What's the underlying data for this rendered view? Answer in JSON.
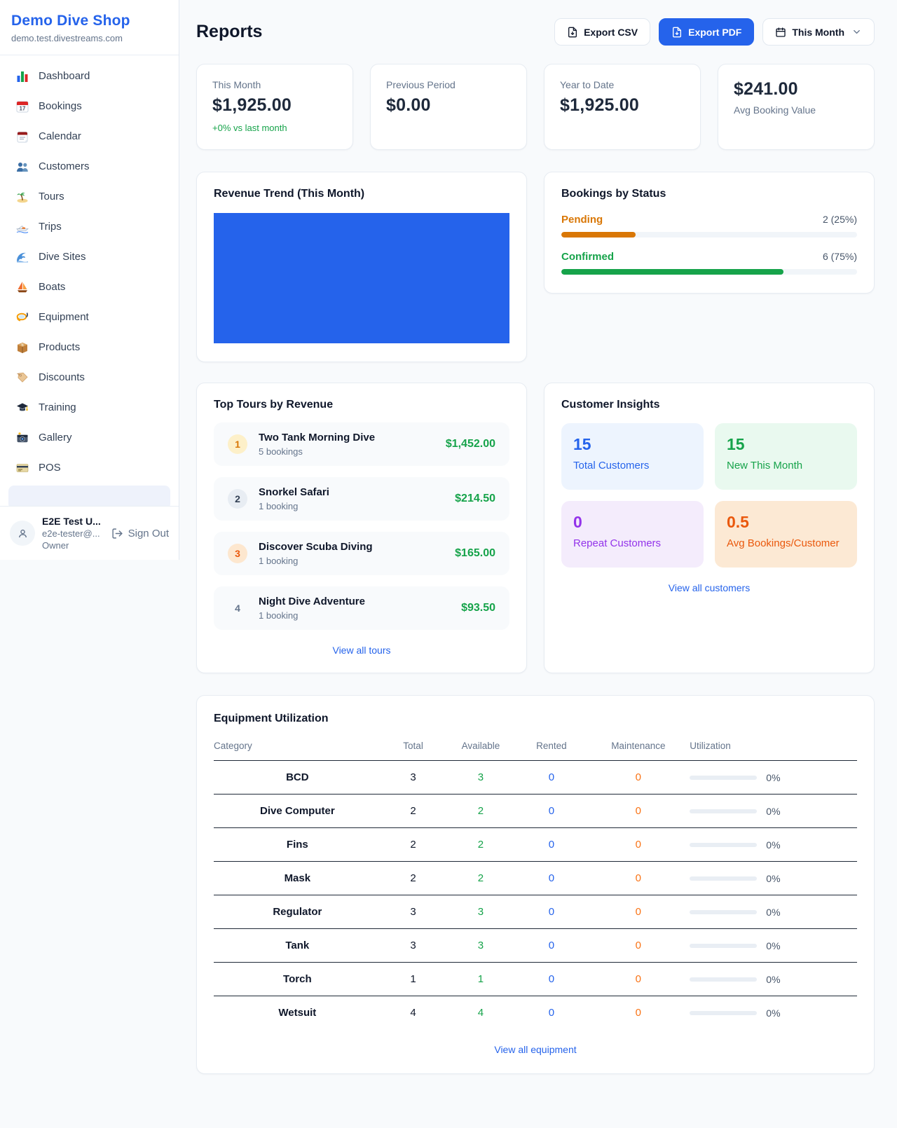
{
  "colors": {
    "accent": "#2563eb",
    "success": "#16a34a",
    "pending_orange": "#d97706",
    "maintenance_orange": "#f97316",
    "purple": "#9333ea",
    "deep_orange": "#ea580c",
    "background": "#f8fafc"
  },
  "sidebar": {
    "shop_name": "Demo Dive Shop",
    "domain": "demo.test.divestreams.com",
    "items": [
      {
        "label": "Dashboard"
      },
      {
        "label": "Bookings"
      },
      {
        "label": "Calendar"
      },
      {
        "label": "Customers"
      },
      {
        "label": "Tours"
      },
      {
        "label": "Trips"
      },
      {
        "label": "Dive Sites"
      },
      {
        "label": "Boats"
      },
      {
        "label": "Equipment"
      },
      {
        "label": "Products"
      },
      {
        "label": "Discounts"
      },
      {
        "label": "Training"
      },
      {
        "label": "Gallery"
      },
      {
        "label": "POS"
      }
    ],
    "user": {
      "name": "E2E Test U...",
      "email": "e2e-tester@...",
      "role": "Owner",
      "sign_out": "Sign Out"
    }
  },
  "header": {
    "title": "Reports",
    "export_csv": "Export CSV",
    "export_pdf": "Export PDF",
    "period": "This Month"
  },
  "stats": [
    {
      "label": "This Month",
      "value": "$1,925.00",
      "delta": "+0% vs last month"
    },
    {
      "label": "Previous Period",
      "value": "$0.00"
    },
    {
      "label": "Year to Date",
      "value": "$1,925.00"
    },
    {
      "label": "Avg Booking Value",
      "value": "$241.00"
    }
  ],
  "revenue_trend": {
    "title": "Revenue Trend (This Month)"
  },
  "chart_data": {
    "type": "bar",
    "title": "Revenue Trend (This Month)",
    "series": [
      {
        "name": "Revenue",
        "values": [
          1925
        ]
      }
    ],
    "note": "single solid blue bar filling entire plot area, no axes or labels shown",
    "bar_color": "#2563eb"
  },
  "bookings_by_status": {
    "title": "Bookings by Status",
    "rows": [
      {
        "label": "Pending",
        "value": "2 (25%)",
        "pct": 25
      },
      {
        "label": "Confirmed",
        "value": "6 (75%)",
        "pct": 75
      }
    ]
  },
  "top_tours": {
    "title": "Top Tours by Revenue",
    "items": [
      {
        "rank": "1",
        "name": "Two Tank Morning Dive",
        "sub": "5 bookings",
        "price": "$1,452.00"
      },
      {
        "rank": "2",
        "name": "Snorkel Safari",
        "sub": "1 booking",
        "price": "$214.50"
      },
      {
        "rank": "3",
        "name": "Discover Scuba Diving",
        "sub": "1 booking",
        "price": "$165.00"
      },
      {
        "rank": "4",
        "name": "Night Dive Adventure",
        "sub": "1 booking",
        "price": "$93.50"
      }
    ],
    "view_all": "View all tours"
  },
  "customer_insights": {
    "title": "Customer Insights",
    "tiles": [
      {
        "value": "15",
        "label": "Total Customers"
      },
      {
        "value": "15",
        "label": "New This Month"
      },
      {
        "value": "0",
        "label": "Repeat Customers"
      },
      {
        "value": "0.5",
        "label": "Avg Bookings/Customer"
      }
    ],
    "view_all": "View all customers"
  },
  "equipment": {
    "title": "Equipment Utilization",
    "columns": [
      "Category",
      "Total",
      "Available",
      "Rented",
      "Maintenance",
      "Utilization"
    ],
    "rows": [
      {
        "category": "BCD",
        "total": "3",
        "available": "3",
        "rented": "0",
        "maintenance": "0",
        "utilization": "0%"
      },
      {
        "category": "Dive Computer",
        "total": "2",
        "available": "2",
        "rented": "0",
        "maintenance": "0",
        "utilization": "0%"
      },
      {
        "category": "Fins",
        "total": "2",
        "available": "2",
        "rented": "0",
        "maintenance": "0",
        "utilization": "0%"
      },
      {
        "category": "Mask",
        "total": "2",
        "available": "2",
        "rented": "0",
        "maintenance": "0",
        "utilization": "0%"
      },
      {
        "category": "Regulator",
        "total": "3",
        "available": "3",
        "rented": "0",
        "maintenance": "0",
        "utilization": "0%"
      },
      {
        "category": "Tank",
        "total": "3",
        "available": "3",
        "rented": "0",
        "maintenance": "0",
        "utilization": "0%"
      },
      {
        "category": "Torch",
        "total": "1",
        "available": "1",
        "rented": "0",
        "maintenance": "0",
        "utilization": "0%"
      },
      {
        "category": "Wetsuit",
        "total": "4",
        "available": "4",
        "rented": "0",
        "maintenance": "0",
        "utilization": "0%"
      }
    ],
    "view_all": "View all equipment"
  }
}
